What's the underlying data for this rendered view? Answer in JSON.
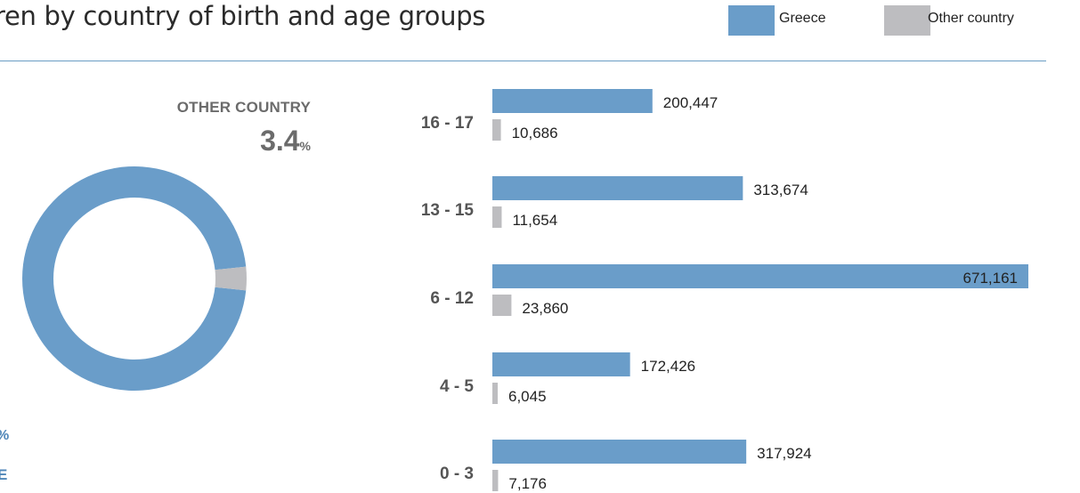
{
  "chart_data": [
    {
      "type": "pie",
      "title": "OTHER COUNTRY",
      "other_percent_num": "3.4",
      "other_percent_sym": "%",
      "greece_percent_sym": "%",
      "greece_label_fragment": "E",
      "slices": [
        {
          "name": "Greece",
          "value": 96.6
        },
        {
          "name": "Other country",
          "value": 3.4
        }
      ]
    },
    {
      "type": "bar",
      "orientation": "horizontal",
      "categories": [
        "16 - 17",
        "13 - 15",
        "6 - 12",
        "4 - 5",
        "0 - 3"
      ],
      "series": [
        {
          "name": "Greece",
          "values": [
            200447,
            313674,
            671161,
            172426,
            317924
          ],
          "labels": [
            "200,447",
            "313,674",
            "671,161",
            "172,426",
            "317,924"
          ]
        },
        {
          "name": "Other country",
          "values": [
            10686,
            11654,
            23860,
            6045,
            7176
          ],
          "labels": [
            "10,686",
            "11,654",
            "23,860",
            "6,045",
            "7,176"
          ]
        }
      ],
      "xlim": [
        0,
        671161
      ]
    }
  ],
  "title_text": "ren by country of birth and age groups",
  "legend": [
    {
      "name": "Greece",
      "color": "#6a9dc9"
    },
    {
      "name": "Other country",
      "color": "#bdbdc0"
    }
  ],
  "colors": {
    "greece": "#6a9dc9",
    "other": "#bdbdc0",
    "rule": "#6a9dc3",
    "greece_text": "#4f86b8"
  }
}
